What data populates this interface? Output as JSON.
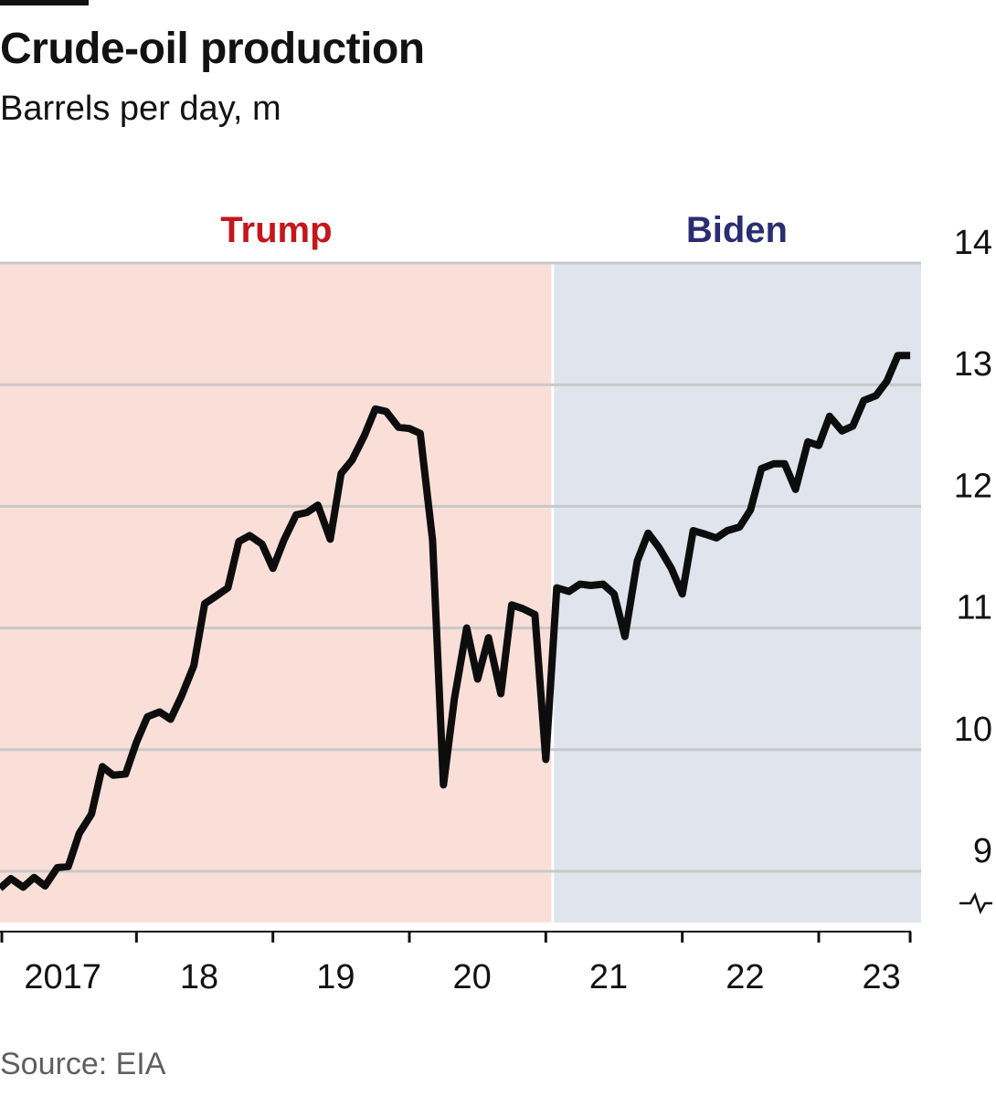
{
  "header": {
    "title": "Crude-oil production",
    "subtitle": "Barrels per day, m"
  },
  "source": "Source: EIA",
  "colors": {
    "trump_band": "#fadfd9",
    "biden_band": "#dfe4ed",
    "trump_label": "#c4161c",
    "biden_label": "#2a2d72",
    "line": "#0d0d0d",
    "gridline": "#c8c8c8"
  },
  "chart_data": {
    "type": "line",
    "title": "Crude-oil production",
    "ylabel": "Barrels per day, m",
    "xlabel": "",
    "ylim": [
      8.8,
      14
    ],
    "yticks": [
      9,
      10,
      11,
      12,
      13,
      14
    ],
    "xlim": [
      2017.0,
      2023.75
    ],
    "xticks": [
      {
        "x": 2017.5,
        "label": "2017"
      },
      {
        "x": 2018.5,
        "label": "18"
      },
      {
        "x": 2019.5,
        "label": "19"
      },
      {
        "x": 2020.5,
        "label": "20"
      },
      {
        "x": 2021.5,
        "label": "21"
      },
      {
        "x": 2022.5,
        "label": "22"
      },
      {
        "x": 2023.5,
        "label": "23"
      }
    ],
    "x_boundaries": [
      2018.0,
      2019.0,
      2020.0,
      2021.0,
      2022.0,
      2023.0,
      2023.67
    ],
    "y_axis_break": true,
    "periods": [
      {
        "label": "Trump",
        "from": 2017.0,
        "to": 2021.05
      },
      {
        "label": "Biden",
        "from": 2021.05,
        "to": 2023.75
      }
    ],
    "series": [
      {
        "name": "US crude-oil production",
        "x": [
          2017.0,
          2017.08,
          2017.17,
          2017.25,
          2017.33,
          2017.42,
          2017.5,
          2017.58,
          2017.67,
          2017.75,
          2017.83,
          2017.92,
          2018.0,
          2018.08,
          2018.17,
          2018.25,
          2018.33,
          2018.42,
          2018.5,
          2018.58,
          2018.67,
          2018.75,
          2018.83,
          2018.92,
          2019.0,
          2019.08,
          2019.17,
          2019.25,
          2019.33,
          2019.42,
          2019.5,
          2019.58,
          2019.67,
          2019.75,
          2019.83,
          2019.92,
          2020.0,
          2020.08,
          2020.17,
          2020.25,
          2020.33,
          2020.42,
          2020.5,
          2020.58,
          2020.67,
          2020.75,
          2020.83,
          2020.92,
          2021.0,
          2021.08,
          2021.17,
          2021.25,
          2021.33,
          2021.42,
          2021.5,
          2021.58,
          2021.67,
          2021.75,
          2021.83,
          2021.92,
          2022.0,
          2022.08,
          2022.17,
          2022.25,
          2022.33,
          2022.42,
          2022.5,
          2022.58,
          2022.67,
          2022.75,
          2022.83,
          2022.92,
          2023.0,
          2023.08,
          2023.17,
          2023.25,
          2023.33,
          2023.42,
          2023.5,
          2023.58,
          2023.67
        ],
        "values": [
          8.86,
          8.94,
          8.87,
          8.95,
          8.88,
          9.03,
          9.04,
          9.31,
          9.47,
          9.86,
          9.79,
          9.8,
          10.06,
          10.27,
          10.31,
          10.25,
          10.44,
          10.69,
          11.2,
          11.26,
          11.33,
          11.71,
          11.76,
          11.69,
          11.49,
          11.72,
          11.93,
          11.95,
          12.01,
          11.73,
          12.27,
          12.38,
          12.58,
          12.8,
          12.78,
          12.65,
          12.64,
          12.6,
          11.72,
          9.71,
          10.42,
          11.0,
          10.58,
          10.92,
          10.46,
          11.19,
          11.16,
          11.11,
          9.92,
          11.33,
          11.3,
          11.36,
          11.35,
          11.36,
          11.28,
          10.93,
          11.55,
          11.78,
          11.66,
          11.49,
          11.28,
          11.8,
          11.77,
          11.74,
          11.8,
          11.83,
          11.97,
          12.31,
          12.35,
          12.35,
          12.14,
          12.53,
          12.5,
          12.74,
          12.62,
          12.66,
          12.87,
          12.91,
          13.03,
          13.24,
          13.24
        ]
      }
    ]
  }
}
